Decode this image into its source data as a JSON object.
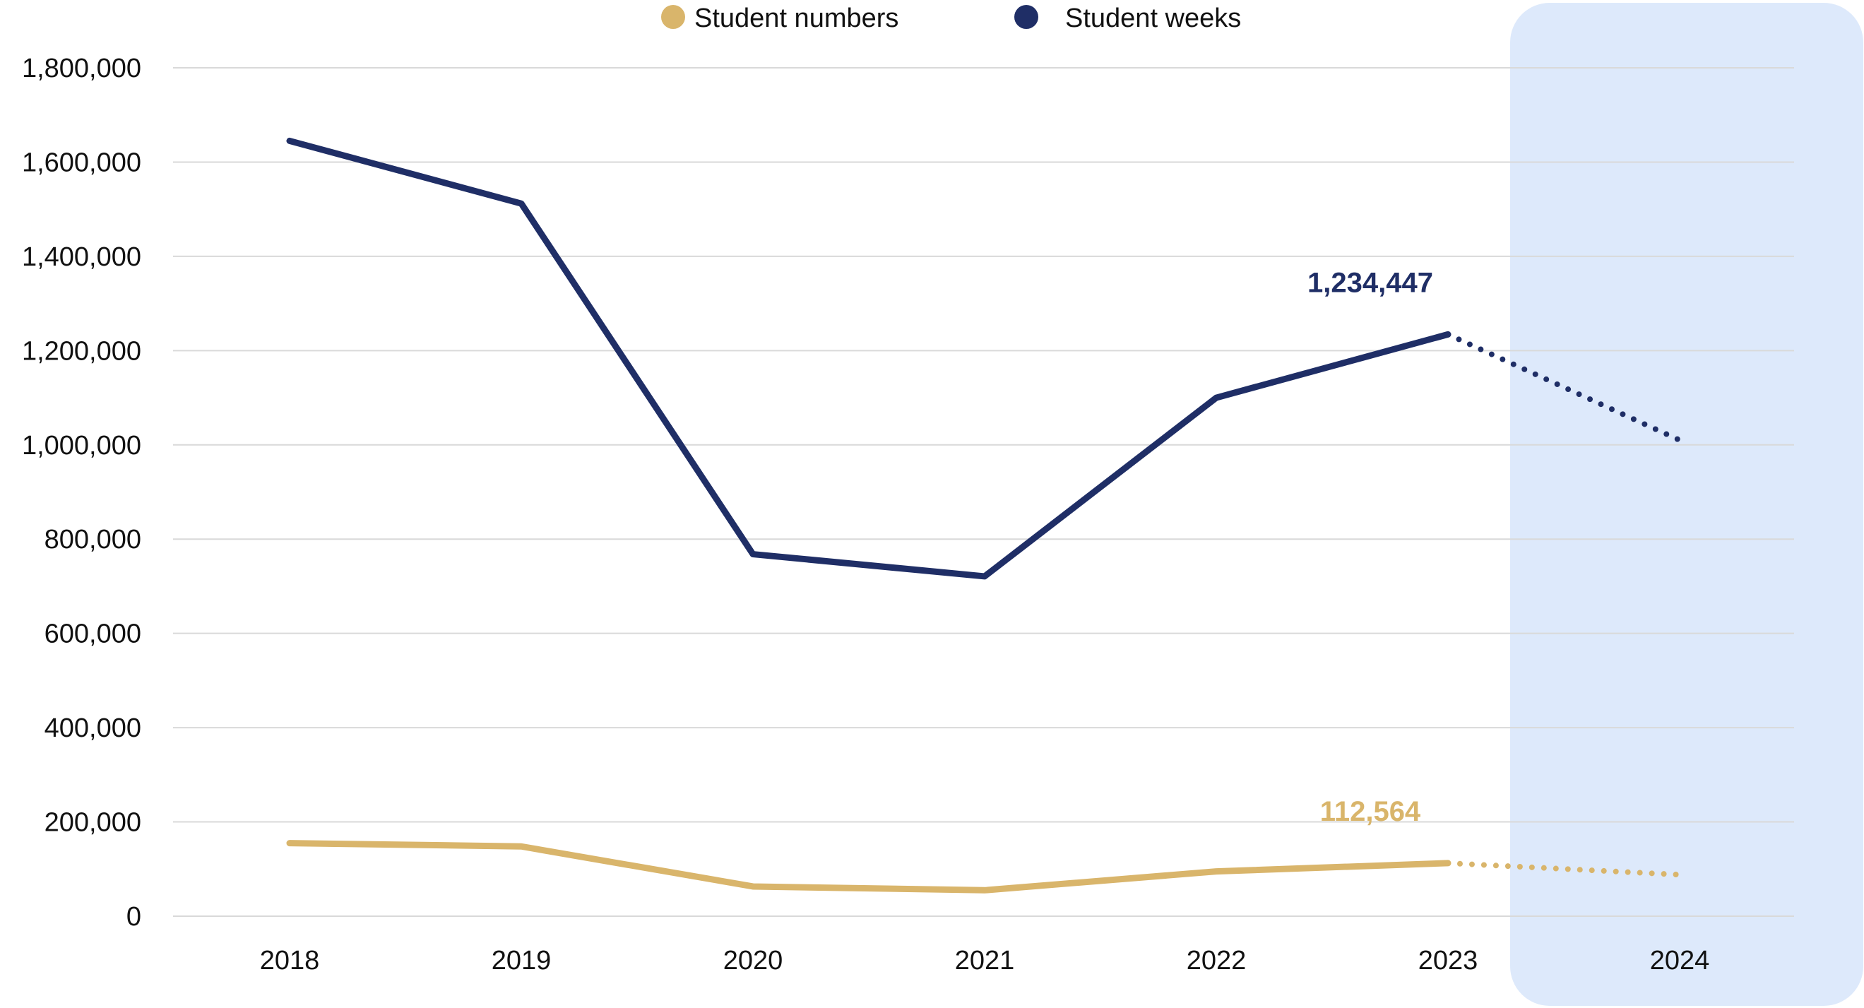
{
  "chart_data": {
    "type": "line",
    "categories": [
      "2018",
      "2019",
      "2020",
      "2021",
      "2022",
      "2023",
      "2024"
    ],
    "ylim": [
      0,
      1800000
    ],
    "yticks": [
      0,
      200000,
      400000,
      600000,
      800000,
      1000000,
      1200000,
      1400000,
      1600000,
      1800000
    ],
    "ytick_labels": [
      "0",
      "200,000",
      "400,000",
      "600,000",
      "800,000",
      "1,000,000",
      "1,200,000",
      "1,400,000",
      "1,600,000",
      "1,800,000"
    ],
    "grid": true,
    "legend_position": "top-center",
    "forecast_category": "2024",
    "series": [
      {
        "name": "Student numbers",
        "color": "#D9B56B",
        "values": [
          155000,
          148000,
          63000,
          55000,
          95000,
          112564,
          88000
        ],
        "dotted_from_index": 5,
        "label_index": 5,
        "label_text": "112,564"
      },
      {
        "name": "Student weeks",
        "color": "#1F2E66",
        "values": [
          1645000,
          1512000,
          768000,
          721000,
          1100000,
          1234447,
          1010000
        ],
        "dotted_from_index": 5,
        "label_index": 5,
        "label_text": "1,234,447"
      }
    ],
    "forecast_band_color": "#DDE9FB"
  }
}
